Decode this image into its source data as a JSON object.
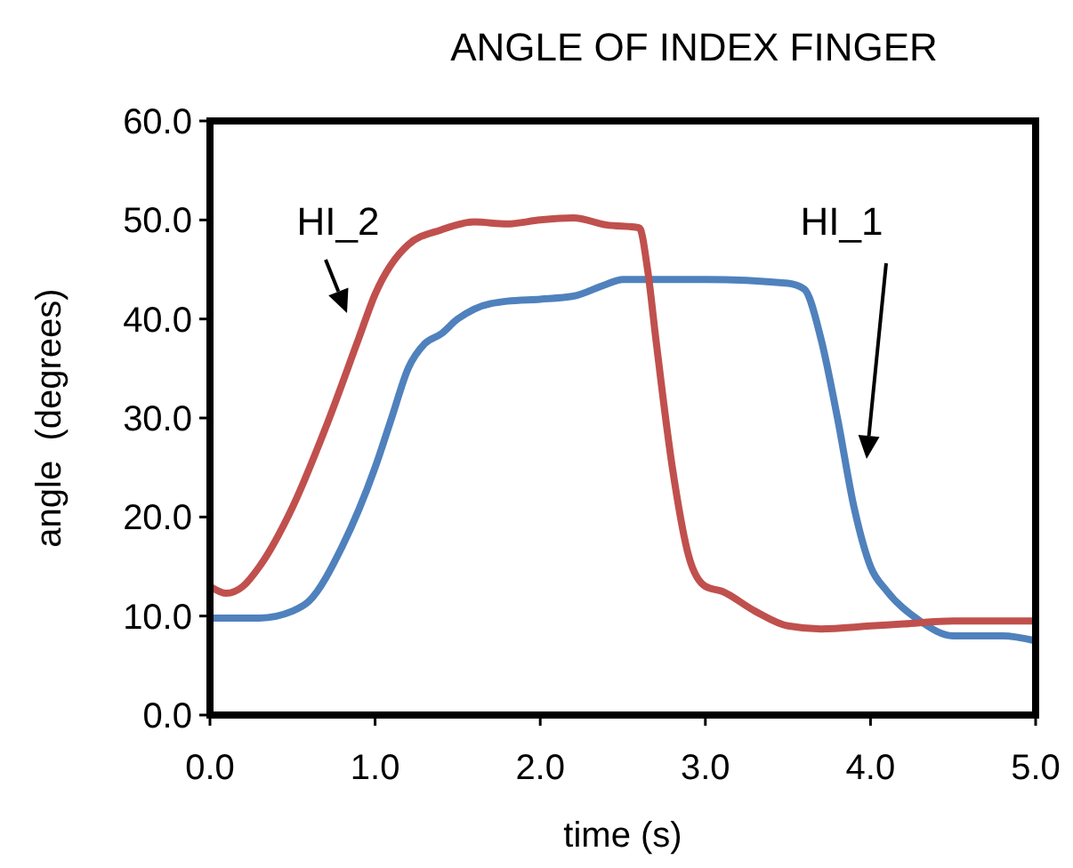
{
  "chart_data": {
    "type": "line",
    "title": "ANGLE OF INDEX FINGER",
    "xlabel": "time (s)",
    "ylabel": "angle  (degrees)",
    "xlim": [
      0,
      5
    ],
    "xticks": [
      {
        "value": 0,
        "label": "0.0"
      },
      {
        "value": 1,
        "label": "1.0"
      },
      {
        "value": 2,
        "label": "2.0"
      },
      {
        "value": 3,
        "label": "3.0"
      },
      {
        "value": 4,
        "label": "4.0"
      },
      {
        "value": 5,
        "label": "5.0"
      }
    ],
    "ylim": [
      0,
      60
    ],
    "yticks": [
      {
        "value": 0,
        "label": "0.0"
      },
      {
        "value": 10,
        "label": "10.0"
      },
      {
        "value": 20,
        "label": "20.0"
      },
      {
        "value": 30,
        "label": "30.0"
      },
      {
        "value": 40,
        "label": "40.0"
      },
      {
        "value": 50,
        "label": "50.0"
      },
      {
        "value": 60,
        "label": "60.0"
      }
    ],
    "grid": false,
    "legend": false,
    "marker": "none",
    "line_style": "solid",
    "series": [
      {
        "color": "#4f81bd",
        "x": [
          0,
          0.3,
          0.5,
          0.6,
          0.8,
          1.0,
          1.1,
          1.2,
          1.3,
          1.4,
          1.5,
          1.6,
          1.8,
          2.0,
          2.2,
          2.4,
          2.5,
          3.0,
          3.5,
          3.6,
          3.7,
          3.8,
          3.9,
          4.0,
          4.1,
          4.3,
          4.5,
          4.8,
          5.0
        ],
        "values": [
          9.8,
          9.8,
          10.5,
          11.5,
          17,
          25,
          30,
          35,
          37.5,
          38.5,
          40,
          41,
          41.8,
          42,
          42.3,
          43.5,
          44,
          44,
          43.6,
          43,
          38,
          30,
          21,
          15,
          12.5,
          9.5,
          8,
          8,
          7.5
        ]
      },
      {
        "color": "#c0504d",
        "x": [
          0,
          0.1,
          0.2,
          0.3,
          0.5,
          0.7,
          0.9,
          1.0,
          1.2,
          1.4,
          1.6,
          1.8,
          2.0,
          2.2,
          2.4,
          2.6,
          2.65,
          2.7,
          2.8,
          2.9,
          3.0,
          3.1,
          3.3,
          3.5,
          3.7,
          4.0,
          4.2,
          4.5,
          5.0
        ],
        "values": [
          13,
          12.3,
          13,
          15,
          21,
          29,
          38,
          42.5,
          47.5,
          49,
          49.8,
          49.6,
          50,
          50.2,
          49.5,
          49.2,
          45,
          38,
          25,
          16,
          13,
          12.5,
          10.5,
          9,
          8.7,
          9,
          9.2,
          9.5,
          9.5
        ]
      }
    ],
    "annotations": [
      "HI_2",
      "HI_1"
    ]
  }
}
